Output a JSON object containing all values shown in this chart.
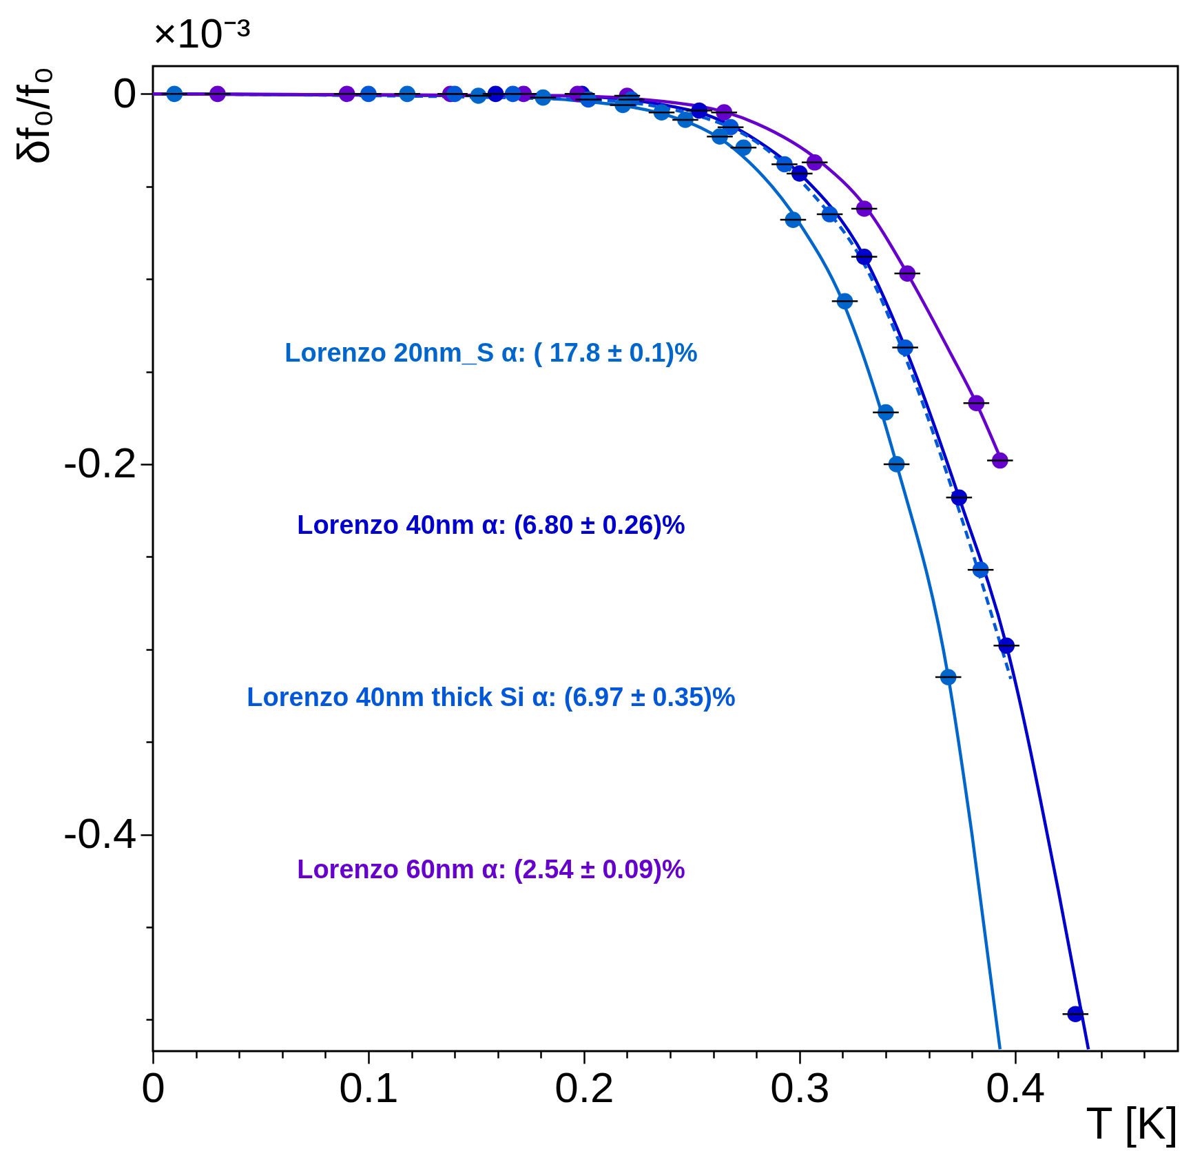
{
  "chart_data": {
    "type": "scatter",
    "xlabel": "T [K]",
    "ylabel": "δf₀/f₀",
    "annotations": [
      "×10⁻³"
    ],
    "xlim": [
      0,
      0.4755
    ],
    "ylim": [
      -0.517,
      0.015
    ],
    "xticks": [
      0,
      {
        "value": 0.02,
        "label": null
      },
      {
        "value": 0.04,
        "label": null
      },
      {
        "value": 0.06,
        "label": null
      },
      {
        "value": 0.08,
        "label": null
      },
      0.1,
      {
        "value": 0.12,
        "label": null
      },
      {
        "value": 0.14,
        "label": null
      },
      {
        "value": 0.16,
        "label": null
      },
      {
        "value": 0.18,
        "label": null
      },
      0.2,
      {
        "value": 0.22,
        "label": null
      },
      {
        "value": 0.24,
        "label": null
      },
      {
        "value": 0.26,
        "label": null
      },
      {
        "value": 0.28,
        "label": null
      },
      0.3,
      {
        "value": 0.32,
        "label": null
      },
      {
        "value": 0.34,
        "label": null
      },
      {
        "value": 0.36,
        "label": null
      },
      {
        "value": 0.38,
        "label": null
      },
      0.4,
      {
        "value": 0.42,
        "label": null
      },
      {
        "value": 0.44,
        "label": null
      },
      {
        "value": 0.46,
        "label": null
      }
    ],
    "yticks": [
      0,
      {
        "value": -0.05,
        "label": null
      },
      {
        "value": -0.1,
        "label": null
      },
      {
        "value": -0.15,
        "label": null
      },
      -0.2,
      {
        "value": -0.25,
        "label": null
      },
      {
        "value": -0.3,
        "label": null
      },
      {
        "value": -0.35,
        "label": null
      },
      -0.4,
      {
        "value": -0.45,
        "label": null
      },
      {
        "value": -0.5,
        "label": null
      }
    ],
    "grid": false,
    "legend": "left",
    "marker": "circle",
    "series": [
      {
        "name": "Lorenzo 20nm_S α: ( 17.8 ± 0.1)%",
        "color": "#0066cc",
        "x": [
          0.01,
          0.118,
          0.151,
          0.181,
          0.218,
          0.236,
          0.247,
          0.263,
          0.274,
          0.297,
          0.321,
          0.34,
          0.345,
          0.369
        ],
        "values": [
          0,
          0,
          -0.001,
          -0.002,
          -0.006,
          -0.01,
          -0.014,
          -0.023,
          -0.029,
          -0.068,
          -0.112,
          -0.172,
          -0.2,
          -0.315
        ],
        "xerrors": [
          0.006,
          0.006,
          0.006,
          0.006,
          0.006,
          0.006,
          0.006,
          0.006,
          0.006,
          0.006,
          0.006,
          0.006,
          0.006,
          0.006
        ]
      },
      {
        "name": "Lorenzo 40nm α: (6.80 ± 0.26)%",
        "color": "#0000cc",
        "x": [
          0.159,
          0.199,
          0.2535,
          0.3,
          0.33,
          0.374,
          0.396,
          0.428
        ],
        "values": [
          0,
          0,
          -0.009,
          -0.043,
          -0.088,
          -0.218,
          -0.298,
          -0.497
        ],
        "xerrors": [
          0.006,
          0.006,
          0.006,
          0.006,
          0.006,
          0.006,
          0.006,
          0.006
        ]
      },
      {
        "name": "Lorenzo 40nm thick Si α: (6.97 ± 0.35)%",
        "color": "#0058d8",
        "x": [
          0.1,
          0.14,
          0.167,
          0.202,
          0.222,
          0.268,
          0.293,
          0.314,
          0.349,
          0.384
        ],
        "values": [
          0,
          0,
          0,
          -0.003,
          -0.003,
          -0.018,
          -0.038,
          -0.065,
          -0.137,
          -0.257
        ],
        "xerrors": [
          0.006,
          0.006,
          0.006,
          0.006,
          0.006,
          0.006,
          0.006,
          0.006,
          0.006,
          0.006
        ]
      },
      {
        "name": "Lorenzo 60nm α: (2.54 ± 0.09)%",
        "color": "#6600cc",
        "x": [
          0.03,
          0.09,
          0.138,
          0.172,
          0.197,
          0.22,
          0.265,
          0.307,
          0.33,
          0.35,
          0.382,
          0.393
        ],
        "values": [
          0,
          0,
          0,
          0,
          0,
          -0.001,
          -0.01,
          -0.037,
          -0.062,
          -0.097,
          -0.167,
          -0.198
        ],
        "xerrors": [
          0.006,
          0.006,
          0.006,
          0.006,
          0.006,
          0.006,
          0.006,
          0.006,
          0.006,
          0.006,
          0.006,
          0.006
        ]
      },
      {
        "type": "line",
        "color": "#0066cc",
        "line_style": "solid",
        "marker": "none",
        "x": [
          0,
          0.15,
          0.19,
          0.24,
          0.27,
          0.3,
          0.32,
          0.345,
          0.369,
          0.38,
          0.393
        ],
        "values": [
          0,
          -0.001,
          -0.003,
          -0.012,
          -0.03,
          -0.07,
          -0.112,
          -0.2,
          -0.315,
          -0.4,
          -0.516
        ]
      },
      {
        "type": "line",
        "color": "#0000cc",
        "line_style": "solid",
        "marker": "none",
        "x": [
          0,
          0.19,
          0.25,
          0.28,
          0.3,
          0.33,
          0.35,
          0.374,
          0.396,
          0.42,
          0.434
        ],
        "values": [
          0,
          -0.001,
          -0.009,
          -0.025,
          -0.043,
          -0.088,
          -0.14,
          -0.218,
          -0.298,
          -0.43,
          -0.516
        ]
      },
      {
        "type": "line",
        "color": "#0058d8",
        "line_style": "dashed",
        "marker": "none",
        "x": [
          0,
          0.2,
          0.25,
          0.28,
          0.306,
          0.33,
          0.35,
          0.374,
          0.398
        ],
        "values": [
          0,
          -0.003,
          -0.011,
          -0.026,
          -0.054,
          -0.092,
          -0.145,
          -0.225,
          -0.316
        ]
      },
      {
        "type": "line",
        "color": "#6600cc",
        "line_style": "solid",
        "marker": "none",
        "x": [
          0,
          0.19,
          0.25,
          0.28,
          0.31,
          0.33,
          0.35,
          0.37,
          0.382,
          0.394
        ],
        "values": [
          0,
          -0.001,
          -0.006,
          -0.016,
          -0.037,
          -0.06,
          -0.097,
          -0.14,
          -0.167,
          -0.199
        ]
      }
    ]
  }
}
